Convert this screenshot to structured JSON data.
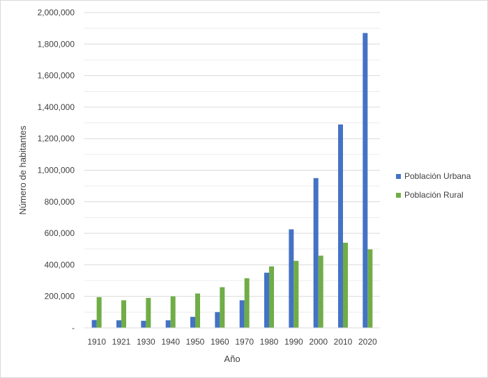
{
  "chart_data": {
    "type": "bar",
    "title": "",
    "xlabel": "Año",
    "ylabel": "Número de habitantes",
    "categories": [
      "1910",
      "1921",
      "1930",
      "1940",
      "1950",
      "1960",
      "1970",
      "1980",
      "1990",
      "2000",
      "2010",
      "2020"
    ],
    "series": [
      {
        "name": "Población Urbana",
        "color": "#4472c4",
        "values": [
          50000,
          48000,
          45000,
          48000,
          70000,
          100000,
          175000,
          350000,
          625000,
          950000,
          1290000,
          1870000
        ]
      },
      {
        "name": "Población Rural",
        "color": "#70ad47",
        "values": [
          195000,
          175000,
          190000,
          200000,
          218000,
          258000,
          315000,
          390000,
          425000,
          458000,
          540000,
          498000
        ]
      }
    ],
    "ylim": [
      0,
      2000000
    ],
    "y_ticks": [
      "-",
      "200,000",
      "400,000",
      "600,000",
      "800,000",
      "1,000,000",
      "1,200,000",
      "1,400,000",
      "1,600,000",
      "1,800,000",
      "2,000,000"
    ],
    "grid": true,
    "legend_position": "right"
  }
}
